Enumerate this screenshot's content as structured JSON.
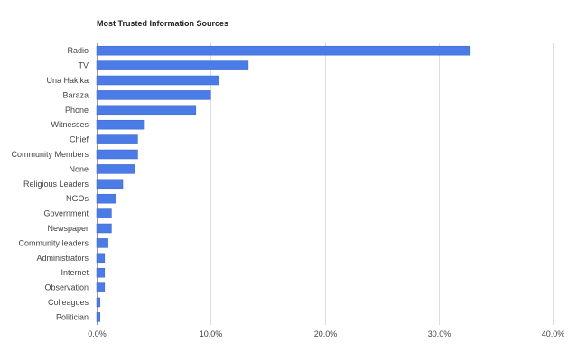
{
  "chart_data": {
    "type": "bar",
    "orientation": "horizontal",
    "title": "Most Trusted Information Sources",
    "xlabel": "",
    "ylabel": "",
    "categories": [
      "Radio",
      "TV",
      "Una Hakika",
      "Baraza",
      "Phone",
      "Witnesses",
      "Chief",
      "Community Members",
      "None",
      "Religious Leaders",
      "NGOs",
      "Government",
      "Newspaper",
      "Community leaders",
      "Administrators",
      "Internet",
      "Observation",
      "Colleagues",
      "Politician"
    ],
    "values": [
      32.7,
      13.3,
      10.7,
      10.0,
      8.7,
      4.2,
      3.6,
      3.6,
      3.3,
      2.3,
      1.7,
      1.3,
      1.3,
      1.0,
      0.7,
      0.7,
      0.7,
      0.3,
      0.3
    ],
    "xlim": [
      0,
      40
    ],
    "xticks": [
      "0.0%",
      "10.0%",
      "20.0%",
      "30.0%",
      "40.0%"
    ],
    "grid": true,
    "legend": "none",
    "colors": {
      "bar": "#4a7be6",
      "bar_stroke": "#3a66c4",
      "grid": "#dddddd",
      "axis_text": "#444444"
    }
  }
}
